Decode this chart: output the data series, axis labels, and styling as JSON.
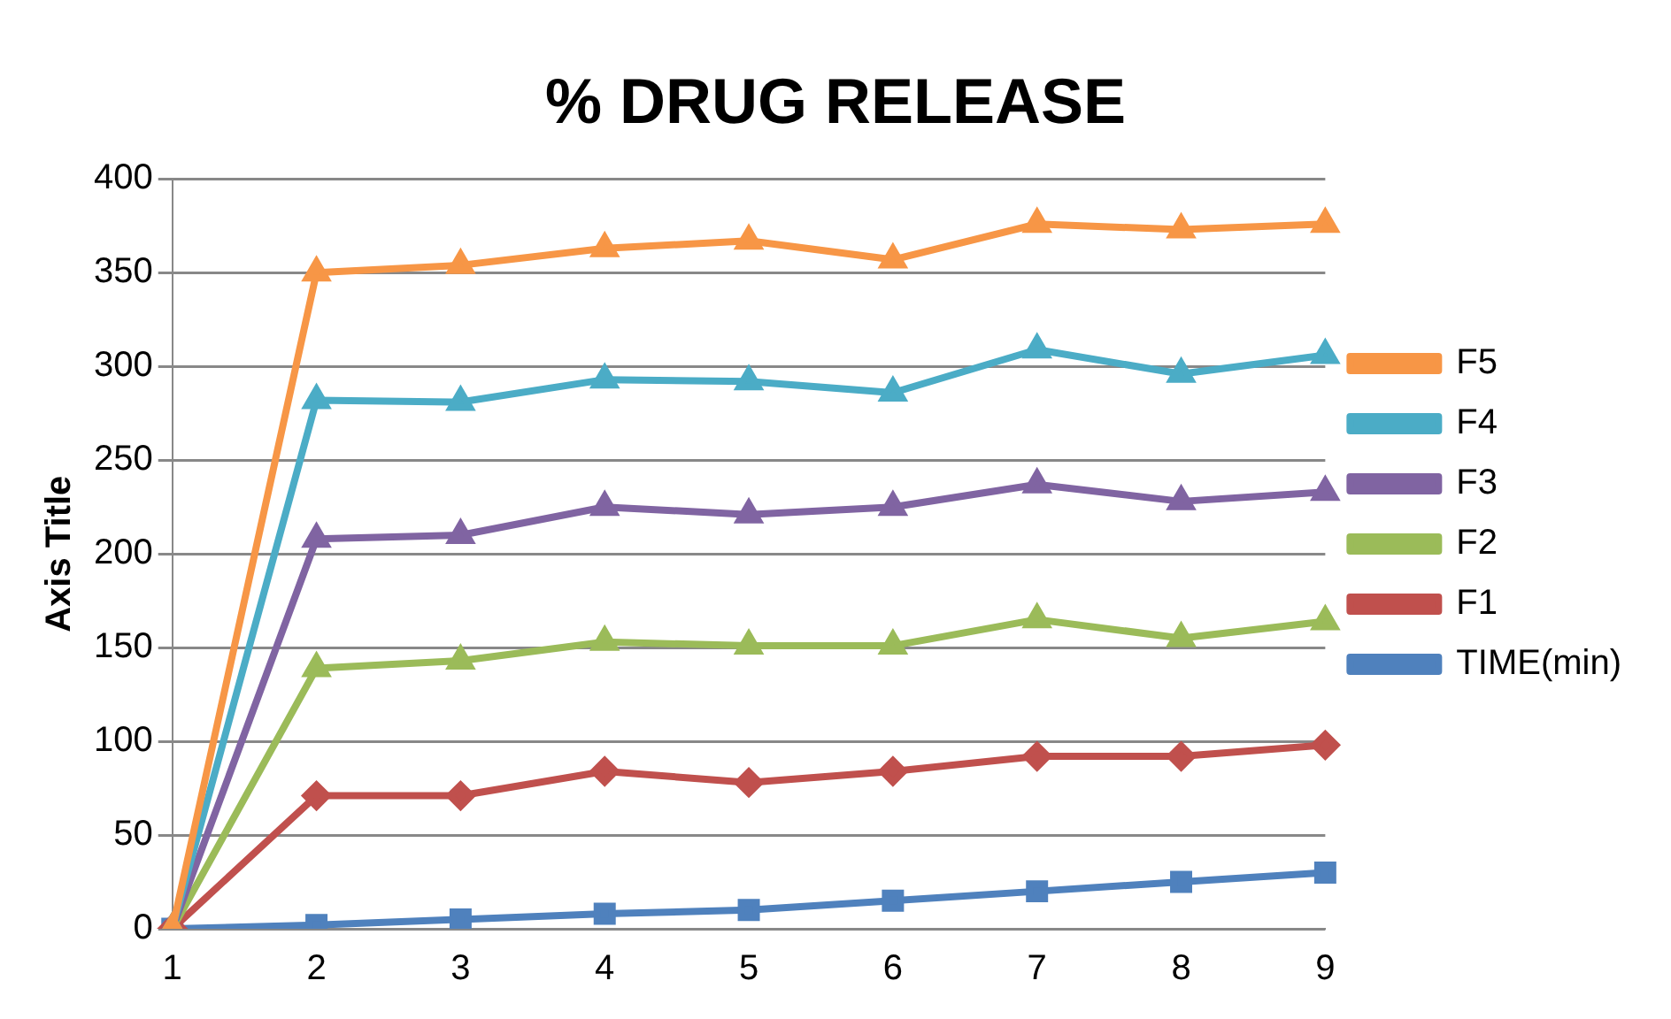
{
  "chart_data": {
    "type": "line",
    "title": "% DRUG RELEASE",
    "ylabel": "Axis Title",
    "categories": [
      "1",
      "2",
      "3",
      "4",
      "5",
      "6",
      "7",
      "8",
      "9"
    ],
    "series": [
      {
        "name": "F5",
        "color": "#f79646",
        "marker": "triangle",
        "values": [
          0,
          350,
          354,
          363,
          367,
          357,
          376,
          373,
          376
        ]
      },
      {
        "name": "F4",
        "color": "#4bacc6",
        "marker": "triangle",
        "values": [
          0,
          282,
          281,
          293,
          292,
          286,
          309,
          296,
          306
        ]
      },
      {
        "name": "F3",
        "color": "#8064a2",
        "marker": "triangle",
        "values": [
          0,
          208,
          210,
          225,
          221,
          225,
          237,
          228,
          233
        ]
      },
      {
        "name": "F2",
        "color": "#9bbb59",
        "marker": "triangle",
        "values": [
          0,
          139,
          143,
          153,
          151,
          151,
          165,
          155,
          164
        ]
      },
      {
        "name": "F1",
        "color": "#c0504d",
        "marker": "diamond",
        "values": [
          0,
          71,
          71,
          84,
          78,
          84,
          92,
          92,
          98
        ]
      },
      {
        "name": "TIME(min)",
        "color": "#4f81bd",
        "marker": "square",
        "values": [
          0,
          2,
          5,
          8,
          10,
          15,
          20,
          25,
          30
        ]
      }
    ],
    "ylim": [
      0,
      400
    ],
    "yticks": [
      0,
      50,
      100,
      150,
      200,
      250,
      300,
      350,
      400
    ],
    "grid": "y",
    "legend": "right"
  }
}
